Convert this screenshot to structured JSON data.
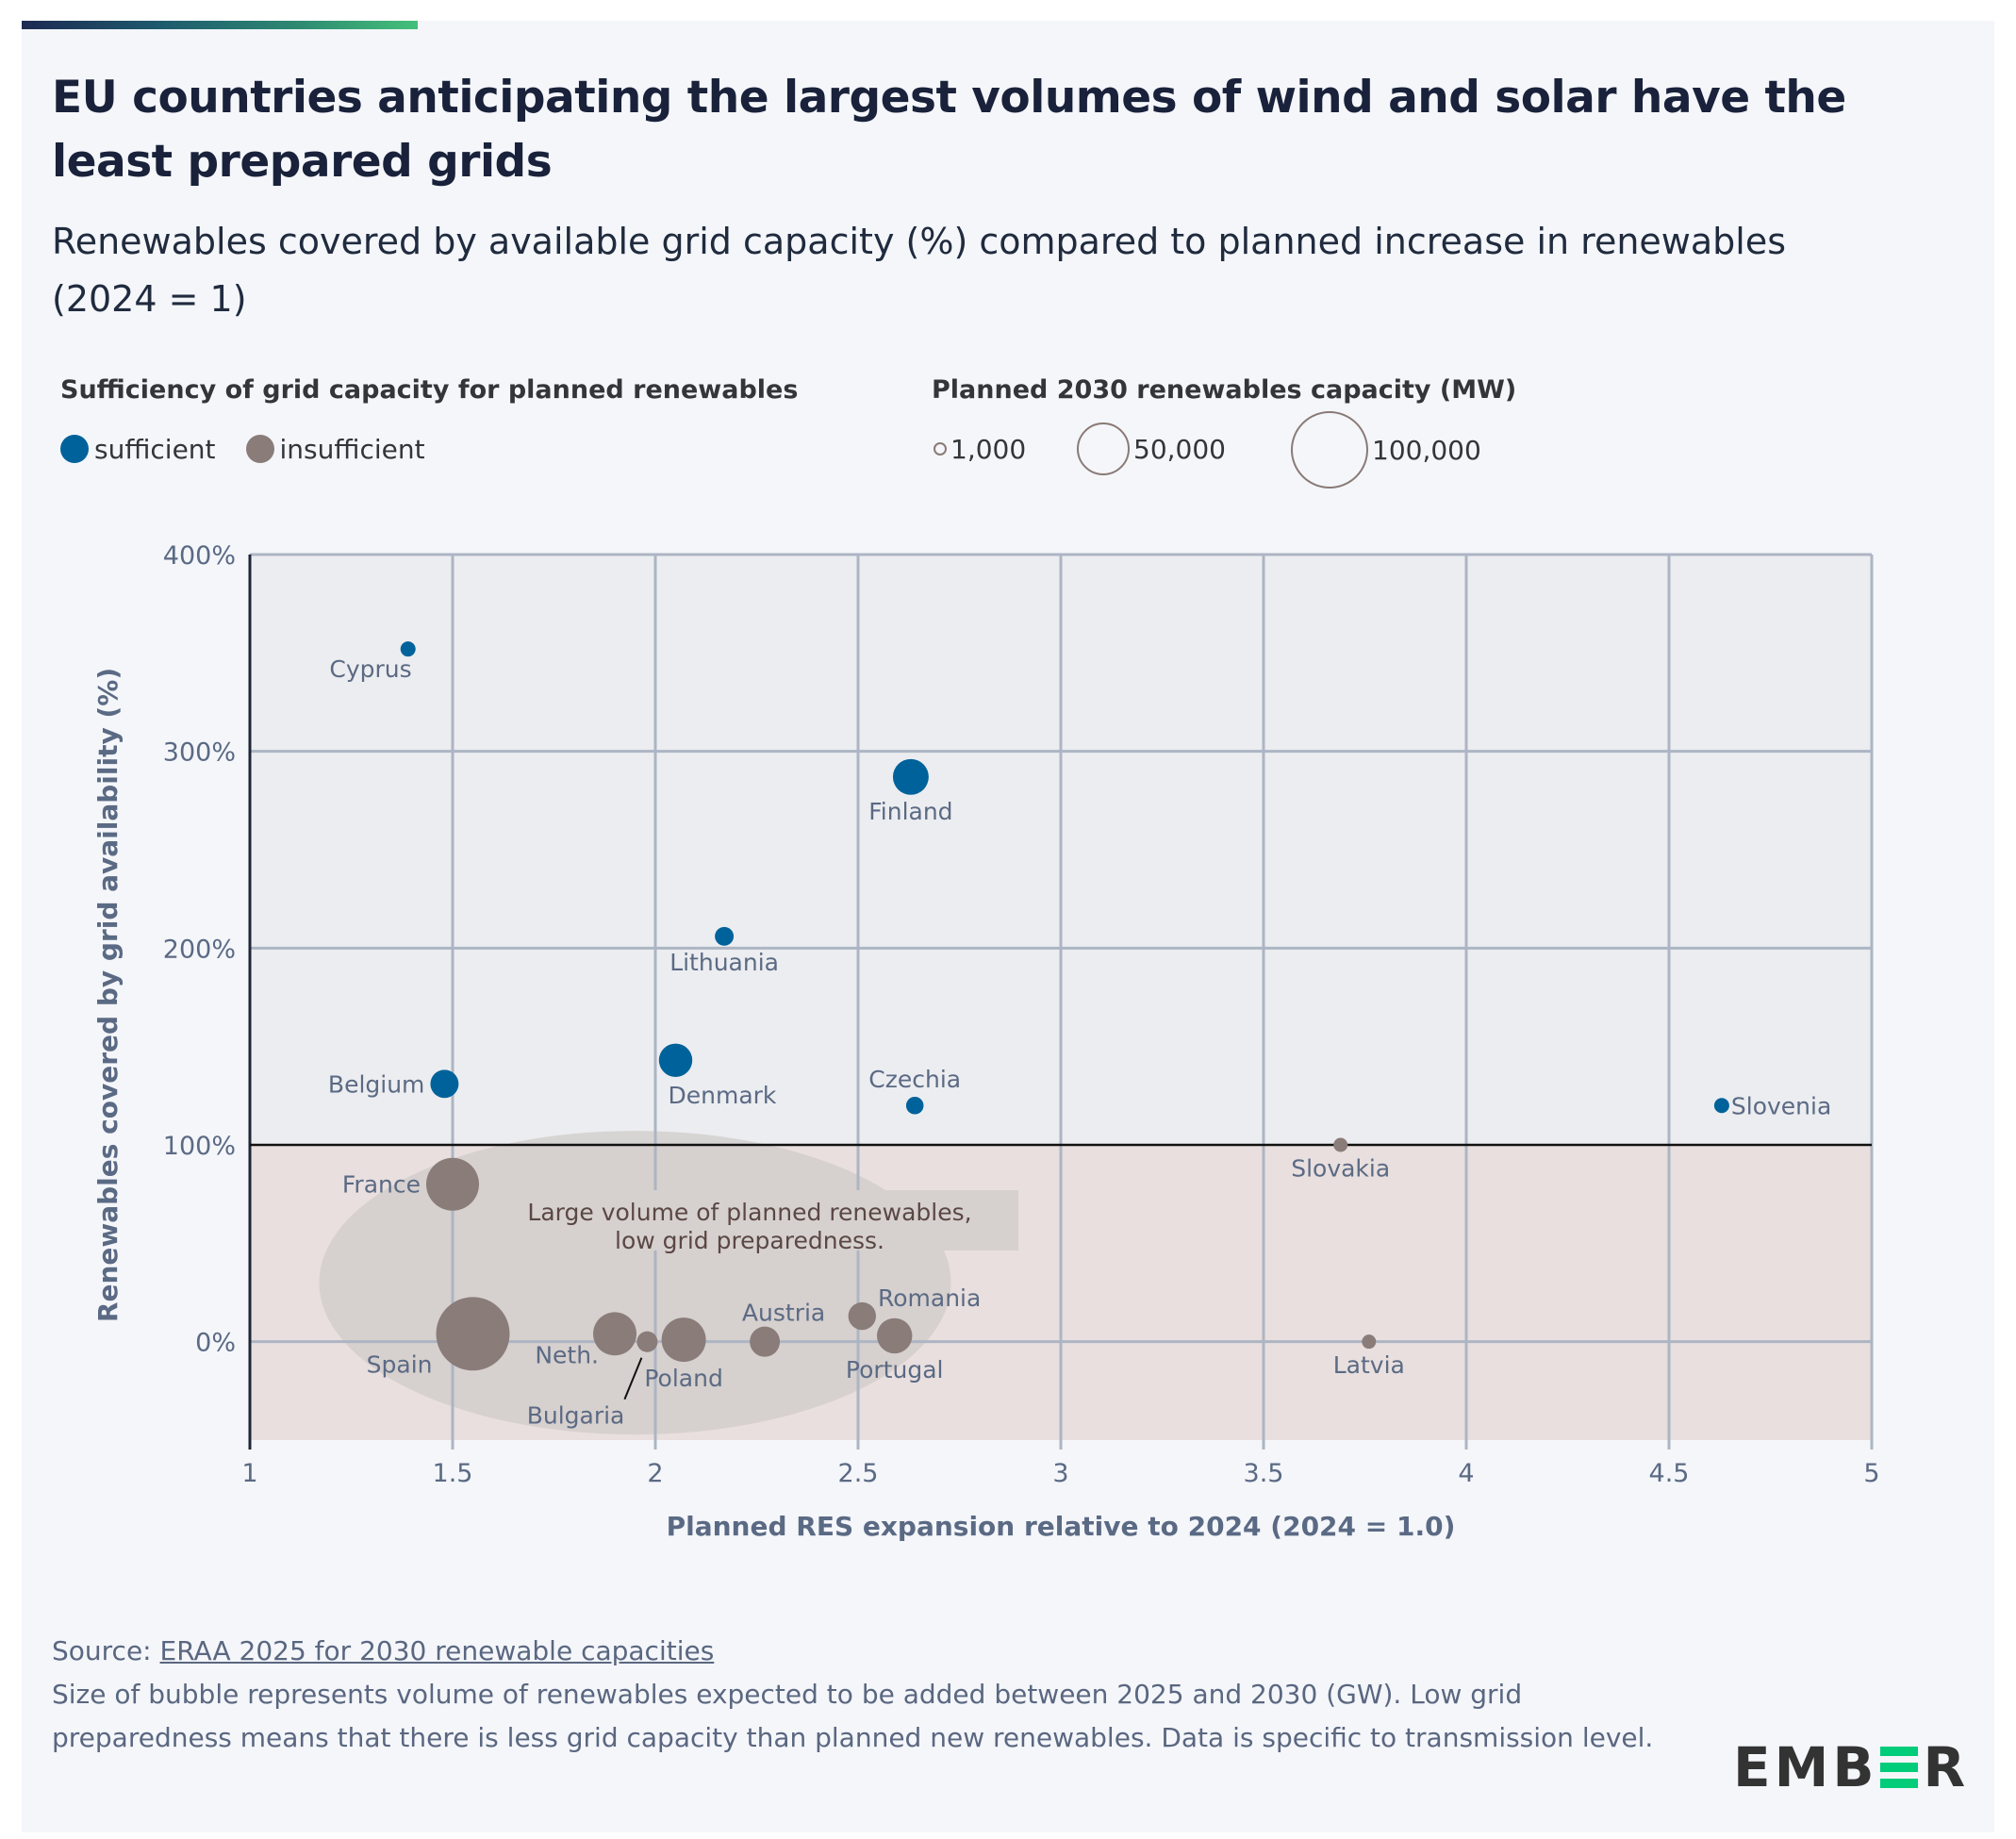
{
  "header": {
    "title": "EU countries anticipating the largest volumes of wind and solar have the least prepared grids",
    "subtitle": "Renewables covered by available grid capacity (%) compared to planned increase in renewables (2024 = 1)"
  },
  "legend": {
    "color_title": "Sufficiency of grid capacity for planned renewables",
    "color_items": [
      {
        "label": "sufficient",
        "color": "#00629b"
      },
      {
        "label": "insufficient",
        "color": "#8a7c79"
      }
    ],
    "size_title": "Planned 2030 renewables capacity (MW)",
    "size_items": [
      {
        "label": "1,000",
        "value": 1000
      },
      {
        "label": "50,000",
        "value": 50000
      },
      {
        "label": "100,000",
        "value": 100000
      }
    ]
  },
  "chart_data": {
    "type": "scatter",
    "subtype": "bubble",
    "title": "EU countries anticipating the largest volumes of wind and solar have the least prepared grids",
    "xlabel": "Planned RES expansion relative to 2024 (2024 = 1.0)",
    "ylabel": "Renewables covered by grid availability (%)",
    "xlim": [
      1,
      5
    ],
    "ylim": [
      -50,
      400
    ],
    "xticks": [
      1,
      1.5,
      2,
      2.5,
      3,
      3.5,
      4,
      4.5,
      5
    ],
    "xtick_labels": [
      "1",
      "1.5",
      "2",
      "2.5",
      "3",
      "3.5",
      "4",
      "4.5",
      "5"
    ],
    "yticks": [
      0,
      100,
      200,
      300,
      400
    ],
    "ytick_labels": [
      "0%",
      "100%",
      "200%",
      "300%",
      "400%"
    ],
    "grid": true,
    "threshold_line": 100,
    "regions": [
      {
        "name": "sufficient",
        "from": 100,
        "to": 400,
        "color": "#ecedf0"
      },
      {
        "name": "insufficient",
        "from": -50,
        "to": 100,
        "color": "#e8dfde"
      }
    ],
    "size_unit": "MW",
    "colors": {
      "sufficient": "#00629b",
      "insufficient": "#8a7c79"
    },
    "points": [
      {
        "label": "Cyprus",
        "x": 1.39,
        "y": 352,
        "size": 4000,
        "category": "sufficient",
        "label_pos": "below-left"
      },
      {
        "label": "Finland",
        "x": 2.63,
        "y": 287,
        "size": 22500,
        "category": "sufficient",
        "label_pos": "below"
      },
      {
        "label": "Lithuania",
        "x": 2.17,
        "y": 206,
        "size": 6200,
        "category": "sufficient",
        "label_pos": "below"
      },
      {
        "label": "Belgium",
        "x": 1.48,
        "y": 131,
        "size": 14000,
        "category": "sufficient",
        "label_pos": "left"
      },
      {
        "label": "Denmark",
        "x": 2.05,
        "y": 143,
        "size": 19600,
        "category": "sufficient",
        "label_pos": "below-right"
      },
      {
        "label": "Czechia",
        "x": 2.64,
        "y": 120,
        "size": 5400,
        "category": "sufficient",
        "label_pos": "above"
      },
      {
        "label": "Slovenia",
        "x": 4.63,
        "y": 120,
        "size": 4000,
        "category": "sufficient",
        "label_pos": "right"
      },
      {
        "label": "Slovakia",
        "x": 3.69,
        "y": 100,
        "size": 3500,
        "category": "insufficient",
        "label_pos": "below"
      },
      {
        "label": "Latvia",
        "x": 3.76,
        "y": 0,
        "size": 3500,
        "category": "insufficient",
        "label_pos": "below"
      },
      {
        "label": "France",
        "x": 1.5,
        "y": 80,
        "size": 49000,
        "category": "insufficient",
        "label_pos": "left"
      },
      {
        "label": "Spain",
        "x": 1.55,
        "y": 4,
        "size": 95000,
        "category": "insufficient",
        "label_pos": "below-left"
      },
      {
        "label": "Neth.",
        "x": 1.9,
        "y": 4,
        "size": 33000,
        "category": "insufficient",
        "label_pos": "below-left"
      },
      {
        "label": "Bulgaria",
        "x": 1.98,
        "y": 0,
        "size": 7600,
        "category": "insufficient",
        "label_pos": "leader-below-left"
      },
      {
        "label": "Poland",
        "x": 2.07,
        "y": 1,
        "size": 34500,
        "category": "insufficient",
        "label_pos": "below"
      },
      {
        "label": "Austria",
        "x": 2.27,
        "y": 0,
        "size": 16000,
        "category": "insufficient",
        "label_pos": "above"
      },
      {
        "label": "Romania",
        "x": 2.51,
        "y": 13,
        "size": 13500,
        "category": "insufficient",
        "label_pos": "above-right"
      },
      {
        "label": "Portugal",
        "x": 2.59,
        "y": 3,
        "size": 21900,
        "category": "insufficient",
        "label_pos": "below"
      }
    ],
    "annotation": {
      "lines": [
        "Large volume of planned renewables,",
        "low grid preparedness."
      ],
      "ellipse_center": {
        "x": 1.95,
        "y": 30
      },
      "color": "#5b4744"
    }
  },
  "footer": {
    "source_prefix": "Source: ",
    "source_link": "ERAA 2025 for 2030 renewable capacities",
    "note": "Size of bubble represents volume of renewables expected to be added between 2025 and 2030 (GW). Low grid preparedness means that there is less grid capacity than planned new renewables. Data is specific to transmission level."
  },
  "logo": {
    "left": "EMB",
    "right": "R",
    "bars_color": "#00cc79"
  }
}
